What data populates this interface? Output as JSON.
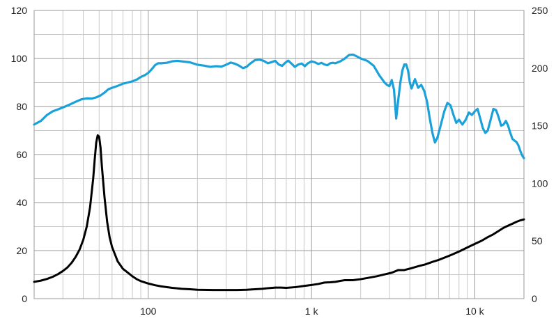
{
  "chart_data": {
    "type": "line",
    "title": "",
    "xlabel": "",
    "ylabel": "",
    "y2label": "",
    "xscale": "log",
    "xlim": [
      20,
      20000
    ],
    "ylim": [
      0,
      120
    ],
    "y2lim": [
      0,
      250
    ],
    "grid": true,
    "legend": "none",
    "x_ticks": [
      {
        "value": 100,
        "label": "100"
      },
      {
        "value": 1000,
        "label": "1 k"
      },
      {
        "value": 10000,
        "label": "10 k"
      }
    ],
    "y_ticks": [
      {
        "value": 0,
        "label": "0"
      },
      {
        "value": 20,
        "label": "20"
      },
      {
        "value": 40,
        "label": "40"
      },
      {
        "value": 60,
        "label": "60"
      },
      {
        "value": 80,
        "label": "80"
      },
      {
        "value": 100,
        "label": "100"
      },
      {
        "value": 120,
        "label": "120"
      }
    ],
    "y2_ticks": [
      {
        "value": 0,
        "label": "0"
      },
      {
        "value": 50,
        "label": "50"
      },
      {
        "value": 100,
        "label": "100"
      },
      {
        "value": 150,
        "label": "150"
      },
      {
        "value": 200,
        "label": "200"
      },
      {
        "value": 250,
        "label": "250"
      }
    ],
    "series": [
      {
        "axis": "left",
        "color": "#1BA1D9",
        "points": [
          [
            20,
            72.5
          ],
          [
            22,
            74
          ],
          [
            24,
            76.5
          ],
          [
            26,
            78
          ],
          [
            28,
            78.8
          ],
          [
            30,
            79.6
          ],
          [
            33,
            80.8
          ],
          [
            36,
            82
          ],
          [
            39,
            83
          ],
          [
            42,
            83.4
          ],
          [
            45,
            83.3
          ],
          [
            48,
            83.8
          ],
          [
            51,
            84.6
          ],
          [
            54,
            85.8
          ],
          [
            57,
            87.2
          ],
          [
            60,
            87.8
          ],
          [
            65,
            88.6
          ],
          [
            70,
            89.5
          ],
          [
            75,
            90
          ],
          [
            80,
            90.5
          ],
          [
            85,
            91.2
          ],
          [
            90,
            92.3
          ],
          [
            95,
            93
          ],
          [
            100,
            94
          ],
          [
            105,
            95.5
          ],
          [
            110,
            97.2
          ],
          [
            115,
            98
          ],
          [
            120,
            98
          ],
          [
            130,
            98.2
          ],
          [
            140,
            98.8
          ],
          [
            150,
            99
          ],
          [
            160,
            98.8
          ],
          [
            180,
            98.4
          ],
          [
            200,
            97.4
          ],
          [
            220,
            97
          ],
          [
            240,
            96.5
          ],
          [
            260,
            96.8
          ],
          [
            280,
            96.6
          ],
          [
            300,
            97.4
          ],
          [
            320,
            98.3
          ],
          [
            340,
            97.8
          ],
          [
            360,
            97
          ],
          [
            380,
            96
          ],
          [
            400,
            96.5
          ],
          [
            420,
            97.8
          ],
          [
            450,
            99.3
          ],
          [
            480,
            99.5
          ],
          [
            510,
            99
          ],
          [
            540,
            98
          ],
          [
            570,
            98.5
          ],
          [
            600,
            99
          ],
          [
            630,
            97.5
          ],
          [
            660,
            96.9
          ],
          [
            690,
            98.2
          ],
          [
            720,
            99.1
          ],
          [
            750,
            98
          ],
          [
            790,
            96.5
          ],
          [
            830,
            97.5
          ],
          [
            870,
            97.9
          ],
          [
            910,
            96.8
          ],
          [
            950,
            98
          ],
          [
            1000,
            98.8
          ],
          [
            1050,
            98.4
          ],
          [
            1100,
            97.7
          ],
          [
            1150,
            98.2
          ],
          [
            1200,
            97.5
          ],
          [
            1250,
            97.2
          ],
          [
            1300,
            98
          ],
          [
            1350,
            98.2
          ],
          [
            1400,
            98
          ],
          [
            1500,
            98.8
          ],
          [
            1600,
            100
          ],
          [
            1700,
            101.5
          ],
          [
            1800,
            101.6
          ],
          [
            1900,
            100.8
          ],
          [
            2000,
            100
          ],
          [
            2200,
            99
          ],
          [
            2400,
            97
          ],
          [
            2600,
            93
          ],
          [
            2800,
            90
          ],
          [
            2900,
            89
          ],
          [
            3000,
            88.5
          ],
          [
            3100,
            91
          ],
          [
            3200,
            87
          ],
          [
            3300,
            75
          ],
          [
            3400,
            83
          ],
          [
            3500,
            90
          ],
          [
            3600,
            95
          ],
          [
            3700,
            97.5
          ],
          [
            3800,
            97.5
          ],
          [
            3900,
            95
          ],
          [
            4000,
            90
          ],
          [
            4100,
            87.5
          ],
          [
            4300,
            91.4
          ],
          [
            4500,
            87.8
          ],
          [
            4700,
            89
          ],
          [
            4900,
            86.5
          ],
          [
            5100,
            82
          ],
          [
            5300,
            75
          ],
          [
            5500,
            69
          ],
          [
            5700,
            65
          ],
          [
            5900,
            67
          ],
          [
            6200,
            72.5
          ],
          [
            6500,
            78
          ],
          [
            6800,
            81.5
          ],
          [
            7100,
            80.5
          ],
          [
            7400,
            76.5
          ],
          [
            7700,
            73.2
          ],
          [
            8000,
            74.5
          ],
          [
            8400,
            72.5
          ],
          [
            8800,
            74.5
          ],
          [
            9200,
            77.5
          ],
          [
            9600,
            76.5
          ],
          [
            10000,
            78
          ],
          [
            10400,
            79
          ],
          [
            10800,
            75
          ],
          [
            11200,
            71
          ],
          [
            11600,
            69
          ],
          [
            12000,
            70
          ],
          [
            12500,
            74.5
          ],
          [
            13000,
            79
          ],
          [
            13500,
            78.5
          ],
          [
            14000,
            75.5
          ],
          [
            14500,
            72
          ],
          [
            15000,
            72.5
          ],
          [
            15500,
            74
          ],
          [
            16000,
            72
          ],
          [
            16500,
            69
          ],
          [
            17000,
            66.5
          ],
          [
            17500,
            65.8
          ],
          [
            18000,
            65.2
          ],
          [
            18500,
            63.8
          ],
          [
            19000,
            61.5
          ],
          [
            19500,
            59.6
          ],
          [
            20000,
            58.5
          ]
        ]
      },
      {
        "axis": "left",
        "color": "#000000",
        "points": [
          [
            20,
            7
          ],
          [
            22,
            7.5
          ],
          [
            24,
            8.2
          ],
          [
            26,
            9.1
          ],
          [
            28,
            10.2
          ],
          [
            30,
            11.5
          ],
          [
            32,
            13
          ],
          [
            34,
            15
          ],
          [
            36,
            17.5
          ],
          [
            38,
            20.5
          ],
          [
            40,
            24.5
          ],
          [
            42,
            30
          ],
          [
            44,
            38
          ],
          [
            46,
            50
          ],
          [
            47,
            58
          ],
          [
            48,
            65
          ],
          [
            49,
            68
          ],
          [
            50,
            67.5
          ],
          [
            51,
            63
          ],
          [
            52,
            55
          ],
          [
            54,
            42
          ],
          [
            56,
            32
          ],
          [
            58,
            25.5
          ],
          [
            60,
            21.5
          ],
          [
            65,
            15.5
          ],
          [
            70,
            12.4
          ],
          [
            75,
            10.8
          ],
          [
            80,
            9.3
          ],
          [
            85,
            8.1
          ],
          [
            90,
            7.3
          ],
          [
            100,
            6.3
          ],
          [
            110,
            5.6
          ],
          [
            120,
            5.1
          ],
          [
            140,
            4.5
          ],
          [
            160,
            4.1
          ],
          [
            180,
            3.9
          ],
          [
            200,
            3.7
          ],
          [
            250,
            3.6
          ],
          [
            300,
            3.6
          ],
          [
            350,
            3.6
          ],
          [
            400,
            3.7
          ],
          [
            450,
            3.9
          ],
          [
            500,
            4.1
          ],
          [
            550,
            4.4
          ],
          [
            600,
            4.6
          ],
          [
            650,
            4.6
          ],
          [
            700,
            4.5
          ],
          [
            800,
            4.8
          ],
          [
            900,
            5.3
          ],
          [
            1000,
            5.7
          ],
          [
            1100,
            6.1
          ],
          [
            1200,
            6.7
          ],
          [
            1300,
            6.8
          ],
          [
            1400,
            7
          ],
          [
            1500,
            7.4
          ],
          [
            1600,
            7.7
          ],
          [
            1800,
            7.7
          ],
          [
            2000,
            8.1
          ],
          [
            2200,
            8.6
          ],
          [
            2500,
            9.3
          ],
          [
            2800,
            10.1
          ],
          [
            3100,
            10.8
          ],
          [
            3400,
            11.9
          ],
          [
            3700,
            11.9
          ],
          [
            4000,
            12.5
          ],
          [
            4500,
            13.5
          ],
          [
            5000,
            14.3
          ],
          [
            5500,
            15.3
          ],
          [
            6000,
            16.1
          ],
          [
            7000,
            17.9
          ],
          [
            8000,
            19.6
          ],
          [
            9000,
            21.3
          ],
          [
            10000,
            22.8
          ],
          [
            11000,
            24.1
          ],
          [
            12000,
            25.6
          ],
          [
            13000,
            26.8
          ],
          [
            14000,
            28.2
          ],
          [
            15000,
            29.5
          ],
          [
            16000,
            30.4
          ],
          [
            17000,
            31.2
          ],
          [
            18000,
            32
          ],
          [
            19000,
            32.6
          ],
          [
            20000,
            33
          ]
        ]
      }
    ]
  }
}
